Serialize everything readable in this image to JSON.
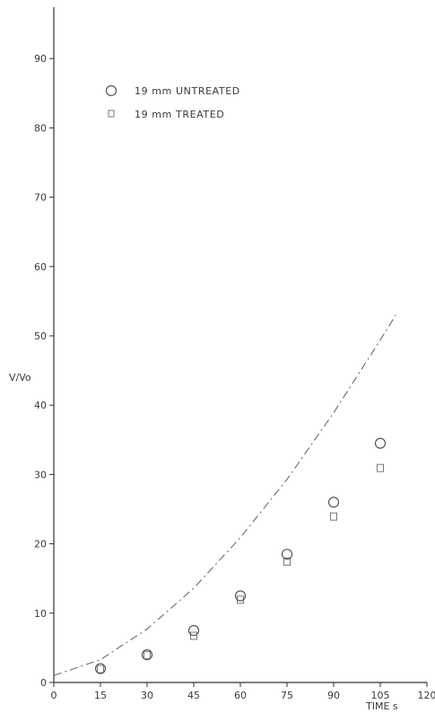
{
  "chart_data": {
    "type": "scatter",
    "xlabel": "TIME  s",
    "ylabel": "V/Vo",
    "xlim": [
      0,
      120
    ],
    "ylim": [
      0,
      98
    ],
    "x_ticks": [
      0,
      15,
      30,
      45,
      60,
      75,
      90,
      105,
      120
    ],
    "x_tick_labels": [
      "0",
      "15",
      "30",
      "45",
      "60",
      "75",
      "90",
      "105",
      "120"
    ],
    "y_ticks": [
      0,
      10,
      20,
      30,
      40,
      50,
      60,
      70,
      80,
      90
    ],
    "y_tick_labels": [
      "0",
      "10",
      "20",
      "30",
      "40",
      "50",
      "60",
      "70",
      "80",
      "90"
    ],
    "grid": false,
    "legend_position": "top-left",
    "series": [
      {
        "name": "19 mm  UNTREATED",
        "marker": "circle",
        "x": [
          15,
          30,
          45,
          60,
          75,
          90,
          105
        ],
        "y": [
          2,
          4,
          7.5,
          12.5,
          18.5,
          26,
          34.5
        ]
      },
      {
        "name": "19 mm  TREATED",
        "marker": "square",
        "x": [
          15,
          30,
          45,
          60,
          75,
          90,
          105
        ],
        "y": [
          2,
          4,
          6.8,
          12,
          17.5,
          24,
          31
        ]
      },
      {
        "marker": "dashed-line",
        "x": [
          0,
          15,
          30,
          45,
          60,
          75,
          90,
          105,
          110
        ],
        "y": [
          1,
          3.3,
          7.7,
          13.6,
          20.9,
          29.3,
          38.9,
          49.4,
          53
        ]
      }
    ]
  }
}
